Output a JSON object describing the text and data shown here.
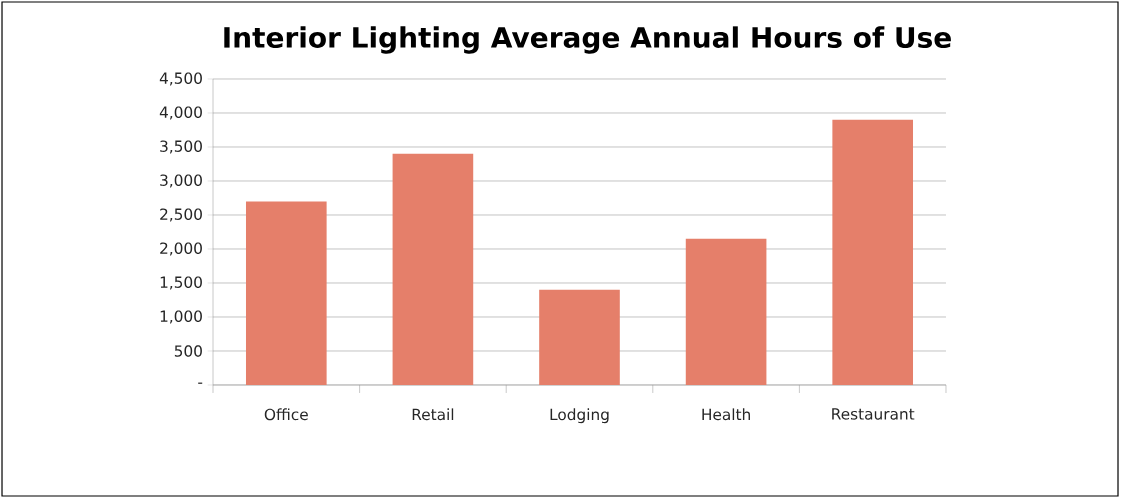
{
  "chart_data": {
    "type": "bar",
    "title": "Interior Lighting Average Annual Hours of Use",
    "categories": [
      "Office",
      "Retail",
      "Lodging",
      "Health",
      "Restaurant"
    ],
    "values": [
      2700,
      3400,
      1400,
      2150,
      3900
    ],
    "color": "#e57f6a",
    "ylim": [
      0,
      4500
    ],
    "yticks": [
      {
        "value": 0,
        "label": "-"
      },
      500,
      {
        "value": 1000,
        "label": "1,000"
      },
      {
        "value": 1500,
        "label": "1,500"
      },
      {
        "value": 2000,
        "label": "2,000"
      },
      {
        "value": 2500,
        "label": "2,500"
      },
      {
        "value": 3000,
        "label": "3,000"
      },
      {
        "value": 3500,
        "label": "3,500"
      },
      {
        "value": 4000,
        "label": "4,000"
      },
      {
        "value": 4500,
        "label": "4,500"
      }
    ],
    "grid": "y"
  }
}
